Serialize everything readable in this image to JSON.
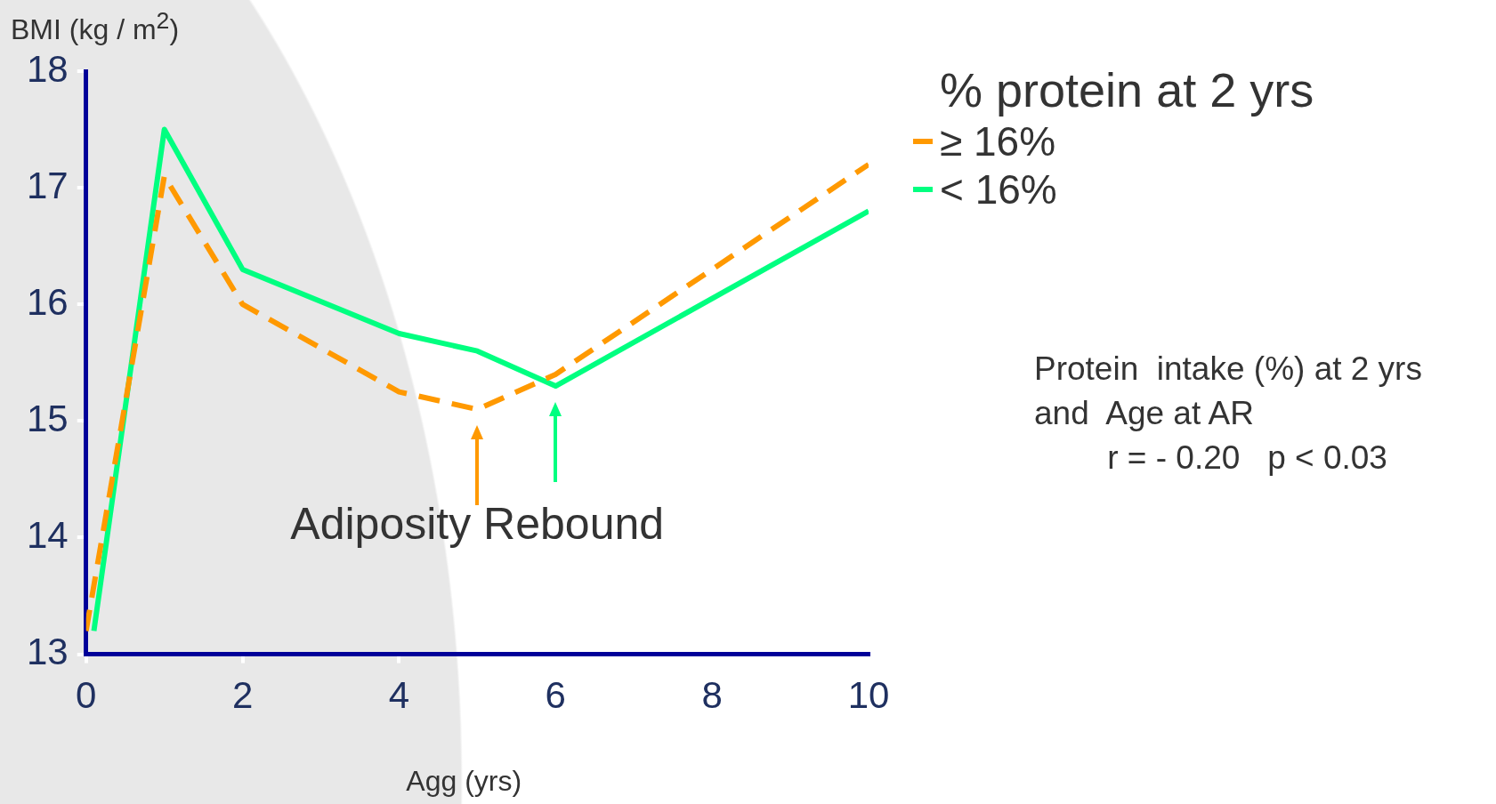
{
  "chart_data": {
    "type": "line",
    "xlabel": "Agg (yrs)",
    "ylabel": "BMI (kg / m$^{2}$)",
    "legend_title": "% protein at 2 yrs",
    "legend": "top right",
    "xlim": [
      0,
      10
    ],
    "xticks": [
      0,
      2,
      4,
      6,
      8,
      10
    ],
    "ylim": [
      13,
      18
    ],
    "yticks": [
      13,
      14,
      15,
      16,
      17,
      18
    ],
    "grid": false,
    "series": [
      {
        "name": "≥ 16%",
        "color": "#ff9900",
        "line_style": "dashed",
        "x": [
          0,
          1,
          2,
          4,
          5,
          6,
          10
        ],
        "values": [
          13.2,
          17.1,
          16.0,
          15.25,
          15.1,
          15.4,
          17.2
        ]
      },
      {
        "name": "< 16%",
        "color": "#00ff80",
        "line_style": "solid",
        "x": [
          0.1,
          1,
          2,
          4,
          5,
          6,
          10
        ],
        "values": [
          13.2,
          17.5,
          16.3,
          15.75,
          15.6,
          15.3,
          16.8
        ]
      }
    ],
    "annotations": [
      {
        "text": "Adiposity Rebound",
        "x": 5,
        "y": 15.1
      },
      "Protein  intake (%) at 2 yrs\nand  Age at AR\n        r = - 0.20   p < 0.03"
    ]
  }
}
